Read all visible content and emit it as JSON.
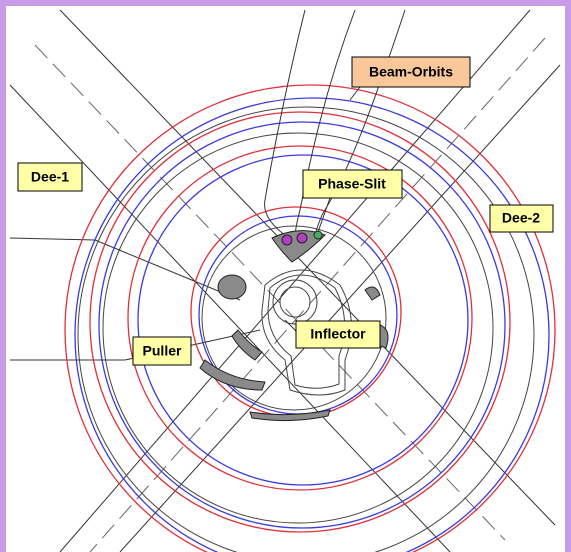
{
  "labels": {
    "beam_orbits": "Beam-Orbits",
    "dee_1": "Dee-1",
    "phase_slit": "Phase-Slit",
    "dee_2": "Dee-2",
    "inflector": "Inflector",
    "puller": "Puller"
  }
}
